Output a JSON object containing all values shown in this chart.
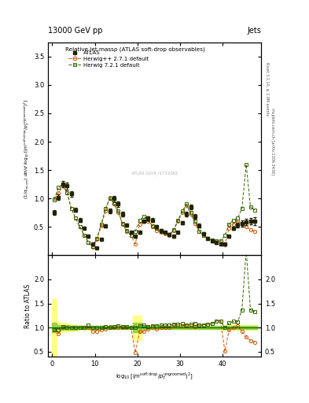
{
  "title_top": "13000 GeV pp",
  "title_right": "Jets",
  "plot_title": "Relative jet massρ (ATLAS soft-drop observables)",
  "xlabel": "log$_{10}$[(m$^{\\mathrm{soft\\ drop}}$/p$_\\mathrm{T}^{\\mathrm{ungroomed}}$)$^2$]",
  "ylabel_main": "(1/σ$_\\mathrm{resum}$) dσ/d log$_{10}$[(m$^\\mathrm{soft\\ drop}$/p$_\\mathrm{T}^\\mathrm{ungroomed}$)$^2$]",
  "ylabel_ratio": "Ratio to ATLAS",
  "right_label_top": "Rivet 3.1.10, ≥ 2.9M events",
  "right_label_bot": "mcplots.cern.ch [arXiv:1306.3436]",
  "watermark": "ATLAS 2019_I1772062",
  "xlim": [
    -1,
    49
  ],
  "ylim_main": [
    0,
    3.75
  ],
  "ylim_ratio": [
    0.4,
    2.5
  ],
  "yticks_main": [
    0.5,
    1.0,
    1.5,
    2.0,
    2.5,
    3.0,
    3.5
  ],
  "yticks_ratio": [
    0.5,
    1.0,
    1.5,
    2.0
  ],
  "xticks": [
    0,
    10,
    20,
    30,
    40
  ],
  "atlas_color": "#222200",
  "herwig1_color": "#cc5500",
  "herwig2_color": "#336600",
  "band_yellow": "#ffff88",
  "band_green": "#88cc33",
  "atlas_x": [
    0.5,
    1.5,
    2.5,
    3.5,
    4.5,
    5.5,
    6.5,
    7.5,
    8.5,
    9.5,
    10.5,
    11.5,
    12.5,
    13.5,
    14.5,
    15.5,
    16.5,
    17.5,
    18.5,
    19.5,
    20.5,
    21.5,
    22.5,
    23.5,
    24.5,
    25.5,
    26.5,
    27.5,
    28.5,
    29.5,
    30.5,
    31.5,
    32.5,
    33.5,
    34.5,
    35.5,
    36.5,
    37.5,
    38.5,
    39.5,
    40.5,
    41.5,
    42.5,
    43.5,
    44.5,
    45.5,
    46.5,
    47.5
  ],
  "atlas_y": [
    0.75,
    1.02,
    1.25,
    1.22,
    1.08,
    0.8,
    0.62,
    0.48,
    0.33,
    0.2,
    0.13,
    0.28,
    0.52,
    0.78,
    1.0,
    0.9,
    0.72,
    0.53,
    0.4,
    0.33,
    0.4,
    0.6,
    0.65,
    0.62,
    0.5,
    0.44,
    0.4,
    0.37,
    0.33,
    0.4,
    0.57,
    0.72,
    0.85,
    0.68,
    0.52,
    0.38,
    0.3,
    0.25,
    0.22,
    0.2,
    0.2,
    0.33,
    0.48,
    0.53,
    0.56,
    0.58,
    0.6,
    0.6
  ],
  "atlas_yerr": [
    0.04,
    0.05,
    0.06,
    0.06,
    0.05,
    0.04,
    0.03,
    0.025,
    0.02,
    0.015,
    0.012,
    0.015,
    0.025,
    0.04,
    0.05,
    0.045,
    0.04,
    0.03,
    0.025,
    0.02,
    0.025,
    0.03,
    0.035,
    0.035,
    0.03,
    0.028,
    0.025,
    0.022,
    0.02,
    0.025,
    0.03,
    0.04,
    0.045,
    0.04,
    0.035,
    0.03,
    0.025,
    0.022,
    0.02,
    0.018,
    0.018,
    0.025,
    0.03,
    0.04,
    0.05,
    0.055,
    0.06,
    0.065
  ],
  "herwig1_x": [
    0.5,
    1.5,
    2.5,
    3.5,
    4.5,
    5.5,
    6.5,
    7.5,
    8.5,
    9.5,
    10.5,
    11.5,
    12.5,
    13.5,
    14.5,
    15.5,
    16.5,
    17.5,
    18.5,
    19.5,
    20.5,
    21.5,
    22.5,
    23.5,
    24.5,
    25.5,
    26.5,
    27.5,
    28.5,
    29.5,
    30.5,
    31.5,
    32.5,
    33.5,
    34.5,
    35.5,
    36.5,
    37.5,
    38.5,
    39.5,
    40.5,
    41.5,
    42.5,
    43.5,
    44.5,
    45.5,
    46.5,
    47.5
  ],
  "herwig1_y": [
    1.0,
    1.1,
    1.22,
    1.1,
    0.82,
    0.65,
    0.5,
    0.35,
    0.22,
    0.14,
    0.28,
    0.52,
    0.78,
    1.02,
    0.9,
    0.75,
    0.55,
    0.42,
    0.35,
    0.2,
    0.55,
    0.6,
    0.6,
    0.5,
    0.44,
    0.4,
    0.38,
    0.35,
    0.44,
    0.6,
    0.75,
    0.88,
    0.72,
    0.56,
    0.42,
    0.35,
    0.3,
    0.27,
    0.25,
    0.25,
    0.18,
    0.48,
    0.55,
    0.6,
    0.55,
    0.5,
    0.45,
    0.42
  ],
  "herwig2_x": [
    0.5,
    1.5,
    2.5,
    3.5,
    4.5,
    5.5,
    6.5,
    7.5,
    8.5,
    9.5,
    10.5,
    11.5,
    12.5,
    13.5,
    14.5,
    15.5,
    16.5,
    17.5,
    18.5,
    19.5,
    20.5,
    21.5,
    22.5,
    23.5,
    24.5,
    25.5,
    26.5,
    27.5,
    28.5,
    29.5,
    30.5,
    31.5,
    32.5,
    33.5,
    34.5,
    35.5,
    36.5,
    37.5,
    38.5,
    39.5,
    40.5,
    41.5,
    42.5,
    43.5,
    44.5,
    45.5,
    46.5,
    47.5
  ],
  "herwig2_y": [
    0.98,
    1.2,
    1.25,
    1.1,
    0.82,
    0.65,
    0.5,
    0.35,
    0.23,
    0.15,
    0.3,
    0.55,
    0.82,
    1.0,
    0.92,
    0.78,
    0.56,
    0.43,
    0.35,
    0.42,
    0.62,
    0.68,
    0.63,
    0.52,
    0.47,
    0.42,
    0.4,
    0.37,
    0.45,
    0.62,
    0.78,
    0.9,
    0.75,
    0.6,
    0.42,
    0.35,
    0.3,
    0.27,
    0.25,
    0.25,
    0.35,
    0.55,
    0.62,
    0.65,
    0.82,
    1.6,
    0.85,
    0.8
  ],
  "ratio_herwig1_y": [
    0.98,
    0.88,
    1.0,
    1.0,
    1.0,
    1.0,
    1.0,
    1.0,
    1.0,
    0.93,
    0.93,
    0.95,
    0.975,
    1.02,
    1.0,
    1.0,
    1.0,
    1.0,
    1.0,
    0.48,
    0.92,
    0.92,
    0.97,
    1.0,
    0.98,
    1.0,
    1.0,
    1.0,
    1.05,
    1.03,
    1.04,
    1.04,
    1.03,
    1.02,
    1.05,
    1.06,
    1.07,
    1.08,
    1.14,
    1.14,
    0.51,
    0.96,
    1.0,
    1.03,
    0.92,
    0.81,
    0.73,
    0.7
  ],
  "ratio_herwig2_y": [
    0.96,
    0.96,
    1.02,
    1.0,
    1.0,
    1.0,
    1.0,
    1.0,
    1.05,
    1.0,
    1.0,
    1.0,
    1.025,
    1.0,
    1.02,
    1.04,
    1.02,
    1.02,
    1.0,
    1.0,
    1.03,
    1.05,
    1.02,
    1.04,
    1.04,
    1.05,
    1.05,
    1.06,
    1.07,
    1.07,
    1.08,
    1.06,
    1.07,
    1.09,
    1.05,
    1.06,
    1.07,
    1.08,
    1.14,
    1.14,
    1.0,
    1.1,
    1.13,
    1.12,
    1.37,
    2.6,
    1.37,
    1.33
  ],
  "band_x_edges": [
    0,
    1,
    2,
    3,
    4,
    5,
    6,
    7,
    8,
    9,
    10,
    11,
    12,
    13,
    14,
    15,
    16,
    17,
    18,
    19,
    20,
    21,
    22,
    23,
    24,
    25,
    26,
    27,
    28,
    29,
    30,
    31,
    32,
    33,
    34,
    35,
    36,
    37,
    38,
    39,
    40,
    41,
    42,
    43,
    44,
    45,
    46,
    47,
    48
  ],
  "ratio_band_yellow_lo": [
    0.4,
    0.88,
    0.9,
    0.92,
    0.93,
    0.94,
    0.95,
    0.96,
    0.96,
    0.96,
    0.96,
    0.96,
    0.97,
    0.97,
    0.97,
    0.97,
    0.97,
    0.97,
    0.97,
    0.75,
    0.75,
    0.97,
    0.97,
    0.97,
    0.97,
    0.97,
    0.97,
    0.97,
    0.97,
    0.97,
    0.97,
    0.97,
    0.97,
    0.97,
    0.97,
    0.97,
    0.97,
    0.97,
    0.97,
    0.97,
    0.95,
    0.95,
    0.95,
    0.95,
    0.95,
    0.95,
    0.95,
    0.95,
    0.95
  ],
  "ratio_band_yellow_hi": [
    1.6,
    1.12,
    1.1,
    1.08,
    1.07,
    1.06,
    1.05,
    1.04,
    1.04,
    1.04,
    1.04,
    1.04,
    1.03,
    1.03,
    1.03,
    1.03,
    1.03,
    1.03,
    1.03,
    1.25,
    1.25,
    1.03,
    1.03,
    1.03,
    1.03,
    1.03,
    1.03,
    1.03,
    1.03,
    1.03,
    1.03,
    1.03,
    1.03,
    1.03,
    1.03,
    1.03,
    1.03,
    1.03,
    1.03,
    1.03,
    1.05,
    1.05,
    1.05,
    1.05,
    1.05,
    1.05,
    1.05,
    1.05,
    1.05
  ],
  "ratio_band_green_lo": [
    0.9,
    0.95,
    0.95,
    0.95,
    0.96,
    0.96,
    0.97,
    0.97,
    0.97,
    0.97,
    0.97,
    0.97,
    0.97,
    0.97,
    0.97,
    0.97,
    0.97,
    0.97,
    0.97,
    0.9,
    0.9,
    0.97,
    0.97,
    0.97,
    0.97,
    0.97,
    0.97,
    0.97,
    0.97,
    0.97,
    0.97,
    0.97,
    0.97,
    0.97,
    0.97,
    0.97,
    0.97,
    0.97,
    0.97,
    0.97,
    0.97,
    0.97,
    0.97,
    0.97,
    0.97,
    0.97,
    0.97,
    0.97,
    0.97
  ],
  "ratio_band_green_hi": [
    1.1,
    1.05,
    1.05,
    1.05,
    1.04,
    1.04,
    1.03,
    1.03,
    1.03,
    1.03,
    1.03,
    1.03,
    1.03,
    1.03,
    1.03,
    1.03,
    1.03,
    1.03,
    1.03,
    1.1,
    1.1,
    1.03,
    1.03,
    1.03,
    1.03,
    1.03,
    1.03,
    1.03,
    1.03,
    1.03,
    1.03,
    1.03,
    1.03,
    1.03,
    1.03,
    1.03,
    1.03,
    1.03,
    1.03,
    1.03,
    1.03,
    1.03,
    1.03,
    1.03,
    1.03,
    1.03,
    1.03,
    1.03,
    1.03
  ]
}
